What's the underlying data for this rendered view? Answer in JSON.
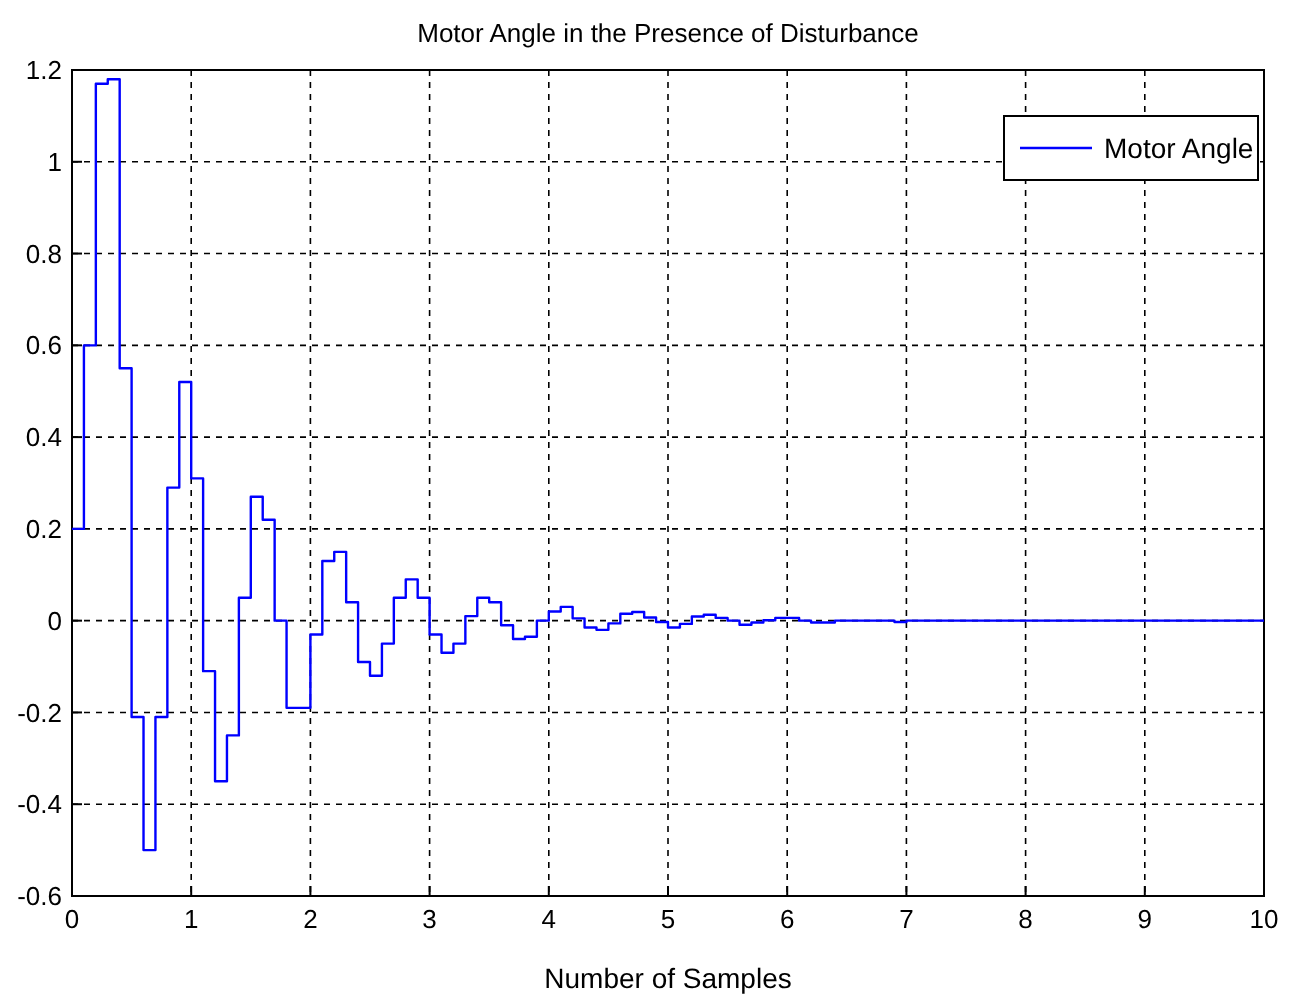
{
  "chart_data": {
    "type": "step",
    "title": "Motor Angle in the Presence of Disturbance",
    "xlabel": "Number of Samples",
    "x": [
      0,
      0.1,
      0.2,
      0.3,
      0.4,
      0.5,
      0.6,
      0.7,
      0.8,
      0.9,
      1,
      1.1,
      1.2,
      1.3,
      1.4,
      1.5,
      1.6,
      1.7,
      1.8,
      1.9,
      2,
      2.1,
      2.2,
      2.3,
      2.4,
      2.5,
      2.6,
      2.7,
      2.8,
      2.9,
      3,
      3.1,
      3.2,
      3.3,
      3.4,
      3.5,
      3.6,
      3.7,
      3.8,
      3.9,
      4,
      4.1,
      4.2,
      4.3,
      4.4,
      4.5,
      4.6,
      4.7,
      4.8,
      4.9,
      5,
      5.1,
      5.2,
      5.3,
      5.4,
      5.5,
      5.6,
      5.7,
      5.8,
      5.9,
      6,
      6.1,
      6.2,
      6.3,
      6.4,
      6.5,
      6.6,
      6.7,
      6.8,
      6.9,
      7,
      7.1,
      7.2,
      7.3,
      7.4,
      7.5,
      7.6,
      7.7,
      7.8,
      7.9,
      8,
      8.1,
      8.2,
      8.3,
      8.4,
      8.5,
      8.6,
      8.7,
      8.8,
      8.9,
      9,
      9.1,
      9.2,
      9.3,
      9.4,
      9.5,
      9.6,
      9.7,
      9.8,
      9.9,
      10
    ],
    "series": [
      {
        "name": "Motor Angle",
        "color": "#0000ff",
        "values": [
          0.2,
          0.6,
          1.17,
          1.18,
          0.55,
          -0.21,
          -0.5,
          -0.21,
          0.29,
          0.52,
          0.31,
          -0.11,
          -0.35,
          -0.25,
          0.05,
          0.27,
          0.22,
          0,
          -0.19,
          -0.19,
          -0.03,
          0.13,
          0.15,
          0.04,
          -0.09,
          -0.12,
          -0.05,
          0.05,
          0.09,
          0.05,
          -0.03,
          -0.07,
          -0.05,
          0.01,
          0.05,
          0.04,
          -0.01,
          -0.04,
          -0.035,
          0,
          0.02,
          0.03,
          0.005,
          -0.015,
          -0.02,
          -0.006,
          0.015,
          0.019,
          0.007,
          -0.003,
          -0.015,
          -0.007,
          0.009,
          0.013,
          0.006,
          0,
          -0.009,
          -0.004,
          0.001,
          0.006,
          0.006,
          0,
          -0.004,
          -0.004,
          0,
          0,
          0,
          0,
          0,
          -0.003,
          0,
          0,
          0,
          0,
          0,
          0,
          0,
          0,
          0,
          0,
          0,
          0,
          0,
          0,
          0,
          0,
          0,
          0,
          0,
          0,
          0,
          0,
          0,
          0,
          0,
          0,
          0,
          0,
          0,
          0,
          0
        ]
      }
    ],
    "xlim": [
      0,
      10
    ],
    "xticks": [
      0,
      1,
      2,
      3,
      4,
      5,
      6,
      7,
      8,
      9,
      10
    ],
    "ylim": [
      -0.6,
      1.2
    ],
    "yticks": [
      -0.6,
      -0.4,
      -0.2,
      0,
      0.2,
      0.4,
      0.6,
      0.8,
      1,
      1.2
    ],
    "grid": true,
    "legend": "top right",
    "line_style": "solid",
    "marker": "none"
  }
}
